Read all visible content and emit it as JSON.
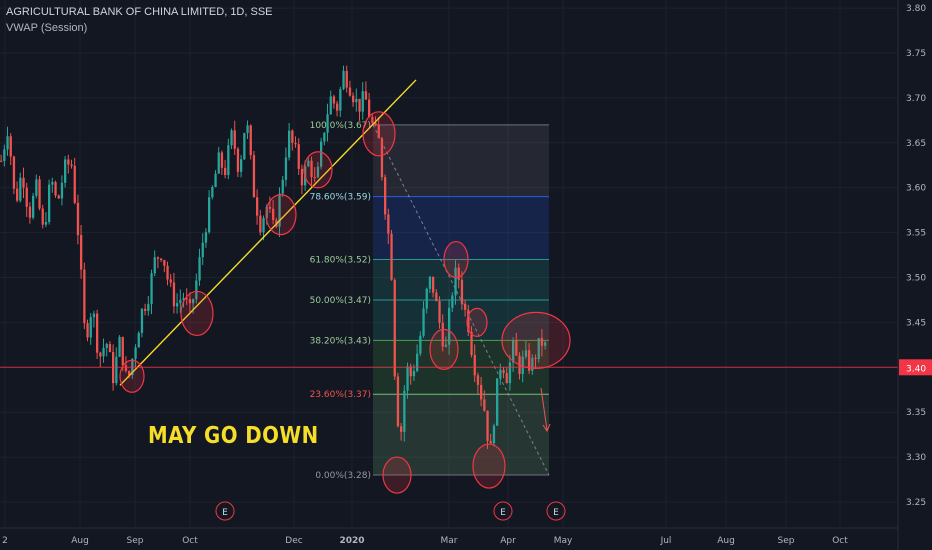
{
  "header": {
    "symbol_line": "AGRICULTURAL BANK OF CHINA LIMITED, 1D, SSE",
    "indicator_line": "VWAP (Session)"
  },
  "annotation": {
    "callout_text": "MAY GO DOWN"
  },
  "colors": {
    "background": "#131722",
    "up": "#26a69a",
    "down": "#ef5350",
    "trendline": "#f5dd2a",
    "circle": "#f23645",
    "last_price_line": "#f23645",
    "axis_text": "#b2b5be"
  },
  "chart_data": {
    "type": "candlestick",
    "title": "AGRICULTURAL BANK OF CHINA LIMITED, 1D, SSE",
    "ylim": [
      3.22,
      3.81
    ],
    "y_ticks": [
      3.25,
      3.3,
      3.35,
      3.4,
      3.45,
      3.5,
      3.55,
      3.6,
      3.65,
      3.7,
      3.75,
      3.8
    ],
    "x_ticks": [
      "2",
      "Aug",
      "Sep",
      "Oct",
      "Dec",
      "2020",
      "Mar",
      "Apr",
      "May",
      "Jul",
      "Aug",
      "Sep",
      "Oct"
    ],
    "last_price": "3.40",
    "grid": true,
    "price_path": [
      [
        0,
        3.63
      ],
      [
        7,
        3.67
      ],
      [
        14,
        3.58
      ],
      [
        21,
        3.62
      ],
      [
        28,
        3.57
      ],
      [
        35,
        3.6
      ],
      [
        42,
        3.55
      ],
      [
        50,
        3.61
      ],
      [
        56,
        3.58
      ],
      [
        63,
        3.62
      ],
      [
        70,
        3.63
      ],
      [
        77,
        3.55
      ],
      [
        84,
        3.43
      ],
      [
        91,
        3.47
      ],
      [
        98,
        3.41
      ],
      [
        105,
        3.43
      ],
      [
        112,
        3.39
      ],
      [
        119,
        3.43
      ],
      [
        126,
        3.38
      ],
      [
        133,
        3.42
      ],
      [
        140,
        3.46
      ],
      [
        147,
        3.48
      ],
      [
        154,
        3.52
      ],
      [
        161,
        3.53
      ],
      [
        168,
        3.49
      ],
      [
        175,
        3.47
      ],
      [
        182,
        3.48
      ],
      [
        189,
        3.46
      ],
      [
        196,
        3.5
      ],
      [
        203,
        3.55
      ],
      [
        210,
        3.59
      ],
      [
        217,
        3.63
      ],
      [
        224,
        3.62
      ],
      [
        231,
        3.66
      ],
      [
        238,
        3.62
      ],
      [
        245,
        3.68
      ],
      [
        252,
        3.6
      ],
      [
        259,
        3.56
      ],
      [
        266,
        3.58
      ],
      [
        273,
        3.55
      ],
      [
        280,
        3.6
      ],
      [
        287,
        3.66
      ],
      [
        294,
        3.64
      ],
      [
        301,
        3.61
      ],
      [
        308,
        3.63
      ],
      [
        315,
        3.6
      ],
      [
        322,
        3.66
      ],
      [
        329,
        3.7
      ],
      [
        336,
        3.69
      ],
      [
        343,
        3.73
      ],
      [
        350,
        3.71
      ],
      [
        357,
        3.69
      ],
      [
        364,
        3.7
      ],
      [
        371,
        3.67
      ],
      [
        378,
        3.65
      ],
      [
        384,
        3.58
      ],
      [
        390,
        3.52
      ],
      [
        395,
        3.35
      ],
      [
        400,
        3.33
      ],
      [
        405,
        3.4
      ],
      [
        410,
        3.39
      ],
      [
        415,
        3.41
      ],
      [
        420,
        3.44
      ],
      [
        425,
        3.48
      ],
      [
        430,
        3.5
      ],
      [
        435,
        3.47
      ],
      [
        440,
        3.44
      ],
      [
        445,
        3.42
      ],
      [
        450,
        3.48
      ],
      [
        456,
        3.51
      ],
      [
        462,
        3.47
      ],
      [
        467,
        3.45
      ],
      [
        472,
        3.41
      ],
      [
        478,
        3.38
      ],
      [
        484,
        3.35
      ],
      [
        489,
        3.3
      ],
      [
        494,
        3.36
      ],
      [
        500,
        3.41
      ],
      [
        506,
        3.39
      ],
      [
        512,
        3.42
      ],
      [
        518,
        3.4
      ],
      [
        524,
        3.41
      ],
      [
        530,
        3.4
      ],
      [
        536,
        3.42
      ],
      [
        542,
        3.43
      ],
      [
        547,
        3.41
      ]
    ],
    "trendline": {
      "from": [
        120,
        3.38
      ],
      "to": [
        416,
        3.72
      ]
    },
    "fib_levels": [
      {
        "ratio": "100.0%(3.67)",
        "value": 3.67
      },
      {
        "ratio": "78.60%(3.59)",
        "value": 3.59
      },
      {
        "ratio": "61.80%(3.52)",
        "value": 3.52
      },
      {
        "ratio": "50.00%(3.47)",
        "value": 3.475
      },
      {
        "ratio": "38.20%(3.43)",
        "value": 3.43
      },
      {
        "ratio": "23.60%(3.37)",
        "value": 3.37
      },
      {
        "ratio": "0.00%(3.28)",
        "value": 3.28
      }
    ],
    "fib_x_range": [
      373,
      549
    ],
    "fib_zone_colors": [
      "#787b86",
      "#2962ff",
      "#26a69a",
      "#26a69a",
      "#4caf50",
      "#81c784",
      "#f23645"
    ],
    "earnings_markers": [
      {
        "label": "E",
        "x": 225
      },
      {
        "label": "E",
        "x": 503
      },
      {
        "label": "E",
        "x": 556
      }
    ],
    "circles": [
      [
        132,
        3.39,
        12,
        16
      ],
      [
        197,
        3.46,
        16,
        22
      ],
      [
        281,
        3.57,
        15,
        20
      ],
      [
        318,
        3.62,
        14,
        18
      ],
      [
        379,
        3.66,
        16,
        22
      ],
      [
        444,
        3.42,
        14,
        20
      ],
      [
        456,
        3.52,
        12,
        18
      ],
      [
        477,
        3.45,
        10,
        14
      ],
      [
        397,
        3.28,
        14,
        18
      ],
      [
        489,
        3.29,
        16,
        22
      ],
      [
        536,
        3.43,
        34,
        28
      ]
    ],
    "series": [
      {
        "name": "VWAP (Session)",
        "values": []
      }
    ]
  }
}
